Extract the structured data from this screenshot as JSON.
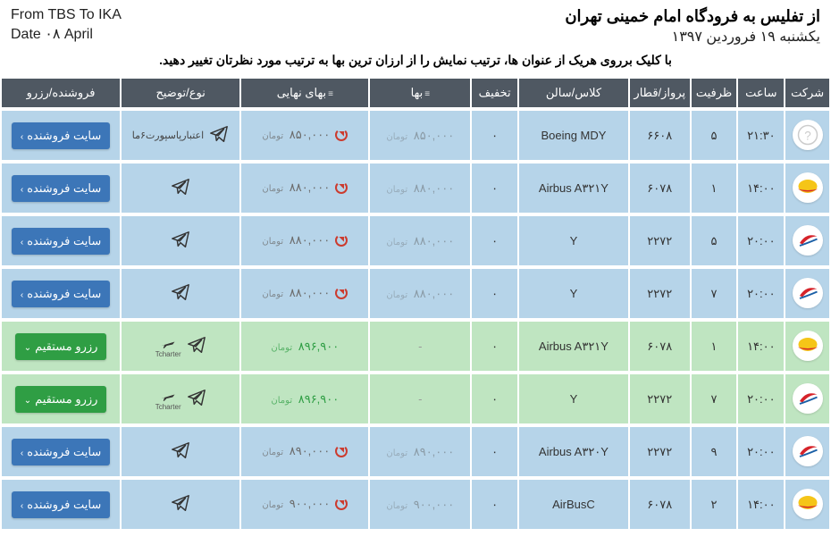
{
  "header": {
    "title_main": "از تفلیس به فرودگاه امام خمینی تهران",
    "title_sub": "یکشنبه ۱۹ فروردین ۱۳۹۷",
    "ltr_from": "From TBS To IKA",
    "ltr_date": "Date ۰۸ April",
    "instruction": "با کلیک برروی هریک از عنوان ها، ترتیب نمایش را از ارزان ترین بها به ترتیب مورد نظرتان تغییر دهید."
  },
  "columns": {
    "company": "شرکت",
    "time": "ساعت",
    "capacity": "ظرفیت",
    "flight": "پرواز/قطار",
    "class": "کلاس/سالن",
    "discount": "تخفیف",
    "price": "بها",
    "final": "بهای نهایی",
    "type": "نوع/توضیح",
    "action": "فروشنده/رزرو"
  },
  "labels": {
    "seller_site": "سایت فروشنده",
    "direct_reserve": "رزرو مستقیم",
    "currency": "تومان",
    "tcharter": "Tcharter"
  },
  "logos": {
    "unknown": {
      "bg": "#eee",
      "glyph": "?",
      "glyph_color": "#bbb"
    },
    "kish": {
      "bg": "#fff",
      "dome": "#f5c518",
      "band": "#d6232a"
    },
    "qeshm": {
      "bg": "#fff",
      "wing": "#d6232a",
      "stripe": "#1b5fa6"
    }
  },
  "rows": [
    {
      "logo": "unknown",
      "time": "۲۱:۳۰",
      "cap": "۵",
      "flight": "۶۶۰۸",
      "class": "Boeing MDY",
      "disc": "۰",
      "price": "۸۵۰,۰۰۰",
      "final": "۸۵۰,۰۰۰",
      "type": "passport",
      "type_text": "اعتبارپاسپورت۶ماه ا...",
      "action": "seller",
      "row": "blue"
    },
    {
      "logo": "kish",
      "time": "۱۴:۰۰",
      "cap": "۱",
      "flight": "۶۰۷۸",
      "class": "Airbus A۳۲۱Y",
      "disc": "۰",
      "price": "۸۸۰,۰۰۰",
      "final": "۸۸۰,۰۰۰",
      "type": "tg",
      "action": "seller",
      "row": "blue"
    },
    {
      "logo": "qeshm",
      "time": "۲۰:۰۰",
      "cap": "۵",
      "flight": "۲۲۷۲",
      "class": "Y",
      "disc": "۰",
      "price": "۸۸۰,۰۰۰",
      "final": "۸۸۰,۰۰۰",
      "type": "tg",
      "action": "seller",
      "row": "blue"
    },
    {
      "logo": "qeshm",
      "time": "۲۰:۰۰",
      "cap": "۷",
      "flight": "۲۲۷۲",
      "class": "Y",
      "disc": "۰",
      "price": "۸۸۰,۰۰۰",
      "final": "۸۸۰,۰۰۰",
      "type": "tg",
      "action": "seller",
      "row": "blue"
    },
    {
      "logo": "kish",
      "time": "۱۴:۰۰",
      "cap": "۱",
      "flight": "۶۰۷۸",
      "class": "Airbus A۳۲۱Y",
      "disc": "۰",
      "price": "-",
      "final": "۸۹۶,۹۰۰",
      "type": "tcharter",
      "action": "direct",
      "row": "green"
    },
    {
      "logo": "qeshm",
      "time": "۲۰:۰۰",
      "cap": "۷",
      "flight": "۲۲۷۲",
      "class": "Y",
      "disc": "۰",
      "price": "-",
      "final": "۸۹۶,۹۰۰",
      "type": "tcharter",
      "action": "direct",
      "row": "green"
    },
    {
      "logo": "qeshm",
      "time": "۲۰:۰۰",
      "cap": "۹",
      "flight": "۲۲۷۲",
      "class": "Airbus A۳۲۰Y",
      "disc": "۰",
      "price": "۸۹۰,۰۰۰",
      "final": "۸۹۰,۰۰۰",
      "type": "tg",
      "action": "seller",
      "row": "blue"
    },
    {
      "logo": "kish",
      "time": "۱۴:۰۰",
      "cap": "۲",
      "flight": "۶۰۷۸",
      "class": "AirBusC",
      "disc": "۰",
      "price": "۹۰۰,۰۰۰",
      "final": "۹۰۰,۰۰۰",
      "type": "tg",
      "action": "seller",
      "row": "blue"
    }
  ]
}
